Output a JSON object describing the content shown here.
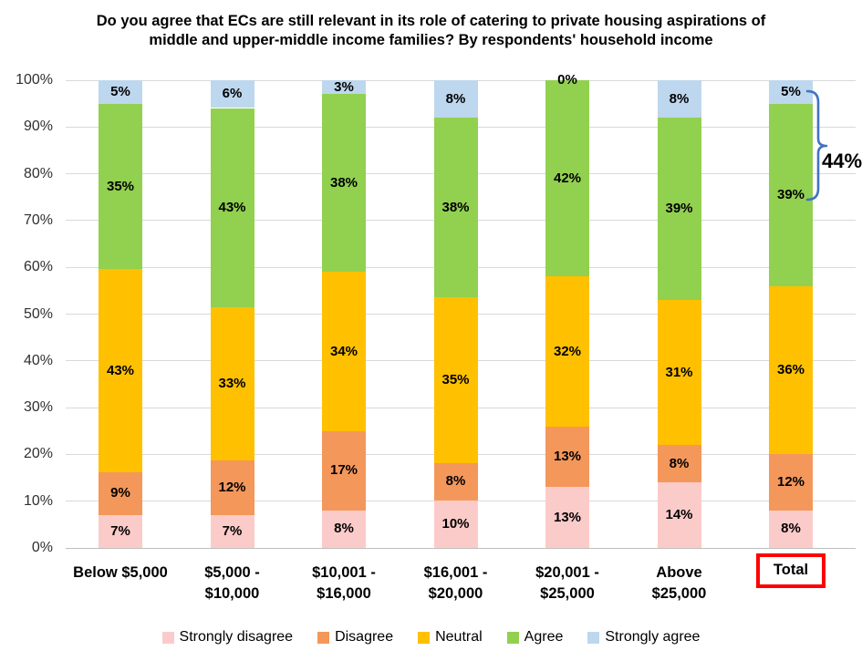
{
  "chart_data": {
    "type": "bar",
    "stacked": true,
    "percent_stacked": true,
    "title": "Do you agree that ECs are still relevant in its role of catering to private housing aspirations of middle and upper-middle income families? By respondents' household income",
    "title_lines": [
      "Do you agree that ECs are still relevant in its role of catering to private housing aspirations of",
      "middle and upper-middle income families? By respondents' household income"
    ],
    "categories": [
      "Below $5,000",
      "$5,000 - $10,000",
      "$10,001 - $16,000",
      "$16,001 - $20,000",
      "$20,001 - $25,000",
      "Above $25,000",
      "Total"
    ],
    "category_label_lines": [
      [
        "Below $5,000"
      ],
      [
        "$5,000 -",
        "$10,000"
      ],
      [
        "$10,001 -",
        "$16,000"
      ],
      [
        "$16,001 -",
        "$20,000"
      ],
      [
        "$20,001 -",
        "$25,000"
      ],
      [
        "Above",
        "$25,000"
      ],
      [
        "Total"
      ]
    ],
    "highlighted_category": "Total",
    "series": [
      {
        "name": "Strongly disagree",
        "color": "#FBCBC9",
        "values": [
          7,
          7,
          8,
          10,
          13,
          14,
          8
        ]
      },
      {
        "name": "Disagree",
        "color": "#F4975B",
        "values": [
          9,
          12,
          17,
          8,
          13,
          8,
          12
        ]
      },
      {
        "name": "Neutral",
        "color": "#FFC000",
        "values": [
          43,
          33,
          34,
          35,
          32,
          31,
          36
        ]
      },
      {
        "name": "Agree",
        "color": "#92D050",
        "values": [
          35,
          43,
          38,
          38,
          42,
          39,
          39
        ]
      },
      {
        "name": "Strongly agree",
        "color": "#BDD7EE",
        "values": [
          5,
          6,
          3,
          8,
          0,
          8,
          5
        ]
      }
    ],
    "data_label_format": "{v}%",
    "y_axis": {
      "min": 0,
      "max": 100,
      "ticks": [
        "0%",
        "10%",
        "20%",
        "30%",
        "40%",
        "50%",
        "60%",
        "70%",
        "80%",
        "90%",
        "100%"
      ],
      "gridlines": true
    },
    "legend": {
      "position": "bottom"
    },
    "annotation": {
      "label": "44%",
      "color": "#4472C4"
    }
  },
  "styles": {
    "grid_color": "#D9D9D9",
    "axis_line_color": "#BFBFBF",
    "highlight_box_color": "#FF0000",
    "text_color": "#000000"
  }
}
